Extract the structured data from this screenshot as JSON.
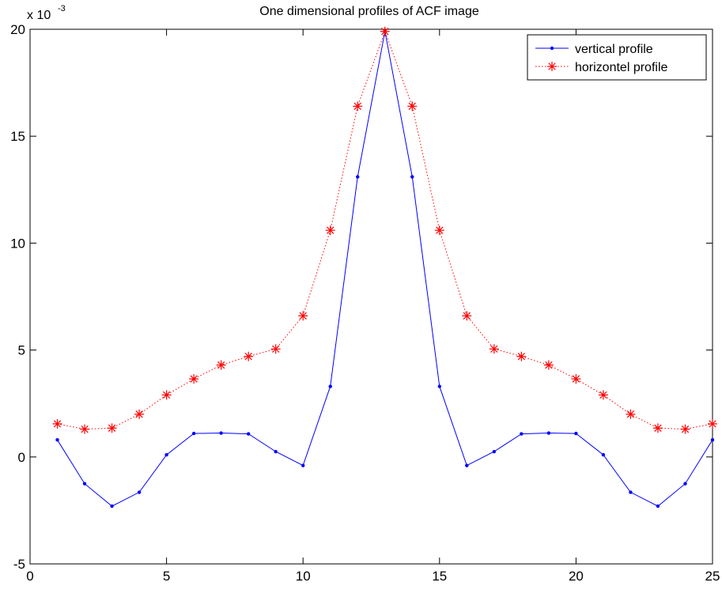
{
  "chart_data": {
    "type": "line",
    "title": "One dimensional profiles of ACF image",
    "xlabel": "",
    "ylabel": "",
    "y_exponent_label": "x 10",
    "y_exponent_power": "-3",
    "xlim": [
      0,
      25
    ],
    "ylim": [
      -5,
      20
    ],
    "xticks": [
      0,
      5,
      10,
      15,
      20,
      25
    ],
    "xtick_labels": [
      "0",
      "5",
      "10",
      "15",
      "20",
      "25"
    ],
    "yticks": [
      -5,
      0,
      5,
      10,
      15,
      20
    ],
    "ytick_labels": [
      "-5",
      "0",
      "5",
      "10",
      "15",
      "20"
    ],
    "grid": false,
    "legend_position": "top-right",
    "x": [
      1,
      2,
      3,
      4,
      5,
      6,
      7,
      8,
      9,
      10,
      11,
      12,
      13,
      14,
      15,
      16,
      17,
      18,
      19,
      20,
      21,
      22,
      23,
      24,
      25
    ],
    "series": [
      {
        "name": "vertical profile",
        "color": "#0000ff",
        "line_style": "solid",
        "marker": "dot",
        "values": [
          0.8,
          -1.25,
          -2.3,
          -1.65,
          0.1,
          1.1,
          1.12,
          1.08,
          0.25,
          -0.4,
          3.3,
          13.1,
          19.9,
          13.1,
          3.3,
          -0.4,
          0.25,
          1.08,
          1.12,
          1.1,
          0.1,
          -1.65,
          -2.3,
          -1.25,
          0.8
        ]
      },
      {
        "name": "horizontel profile",
        "color": "#ff0000",
        "line_style": "dotted",
        "marker": "asterisk",
        "values": [
          1.55,
          1.3,
          1.35,
          2.0,
          2.9,
          3.65,
          4.3,
          4.7,
          5.05,
          6.6,
          10.6,
          16.4,
          19.9,
          16.4,
          10.6,
          6.6,
          5.05,
          4.7,
          4.3,
          3.65,
          2.9,
          2.0,
          1.35,
          1.3,
          1.55
        ]
      }
    ]
  }
}
